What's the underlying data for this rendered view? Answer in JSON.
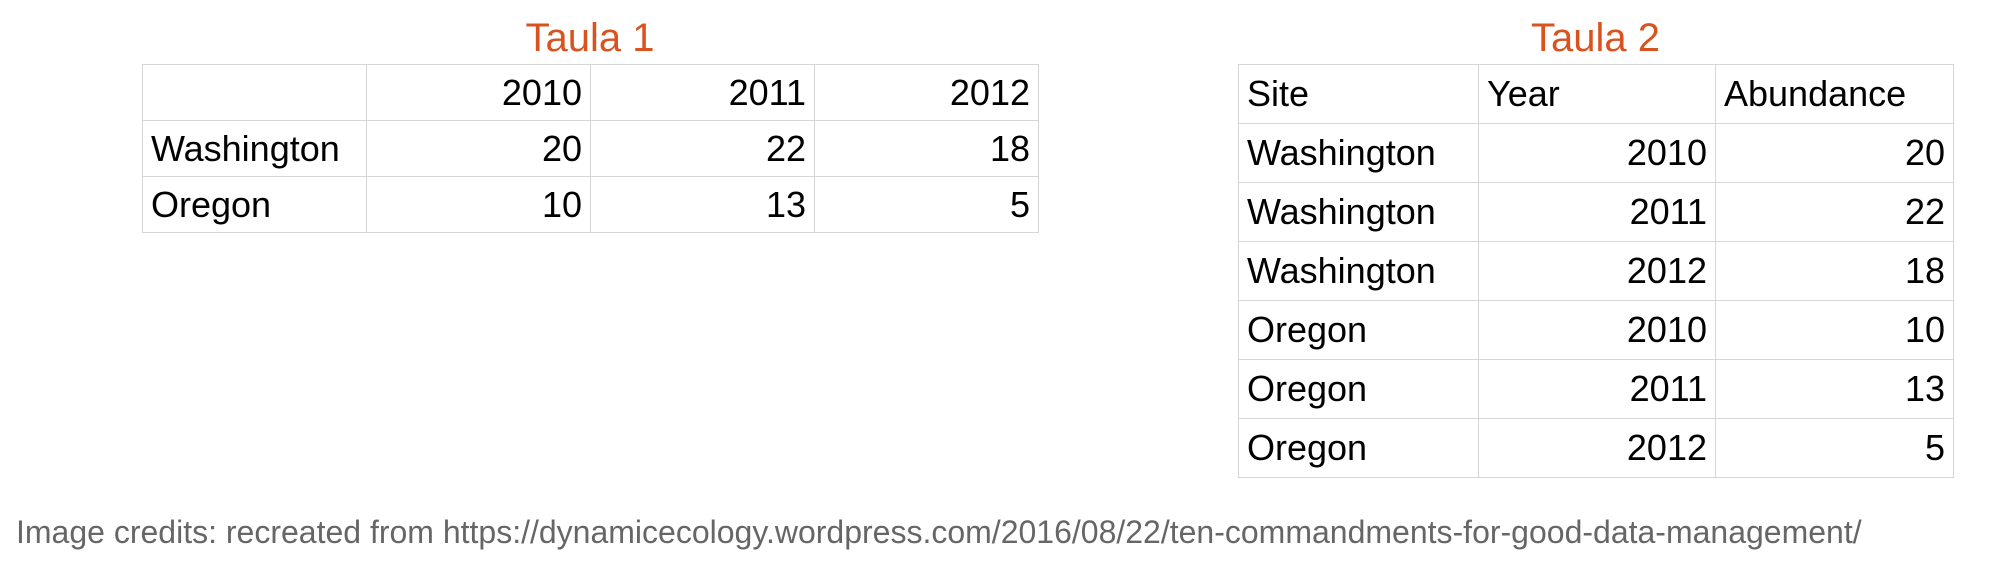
{
  "colors": {
    "title": "#d9531e",
    "credits": "#666666",
    "grid": "#d6d6d6"
  },
  "table1": {
    "title": "Taula 1",
    "header": [
      "",
      "2010",
      "2011",
      "2012"
    ],
    "rows": [
      [
        "Washington",
        "20",
        "22",
        "18"
      ],
      [
        "Oregon",
        "10",
        "13",
        "5"
      ]
    ]
  },
  "table2": {
    "title": "Taula 2",
    "header": [
      "Site",
      "Year",
      "Abundance"
    ],
    "rows": [
      [
        "Washington",
        "2010",
        "20"
      ],
      [
        "Washington",
        "2011",
        "22"
      ],
      [
        "Washington",
        "2012",
        "18"
      ],
      [
        "Oregon",
        "2010",
        "10"
      ],
      [
        "Oregon",
        "2011",
        "13"
      ],
      [
        "Oregon",
        "2012",
        "5"
      ]
    ]
  },
  "credits": "Image credits: recreated from https://dynamicecology.wordpress.com/2016/08/22/ten-commandments-for-good-data-management/"
}
